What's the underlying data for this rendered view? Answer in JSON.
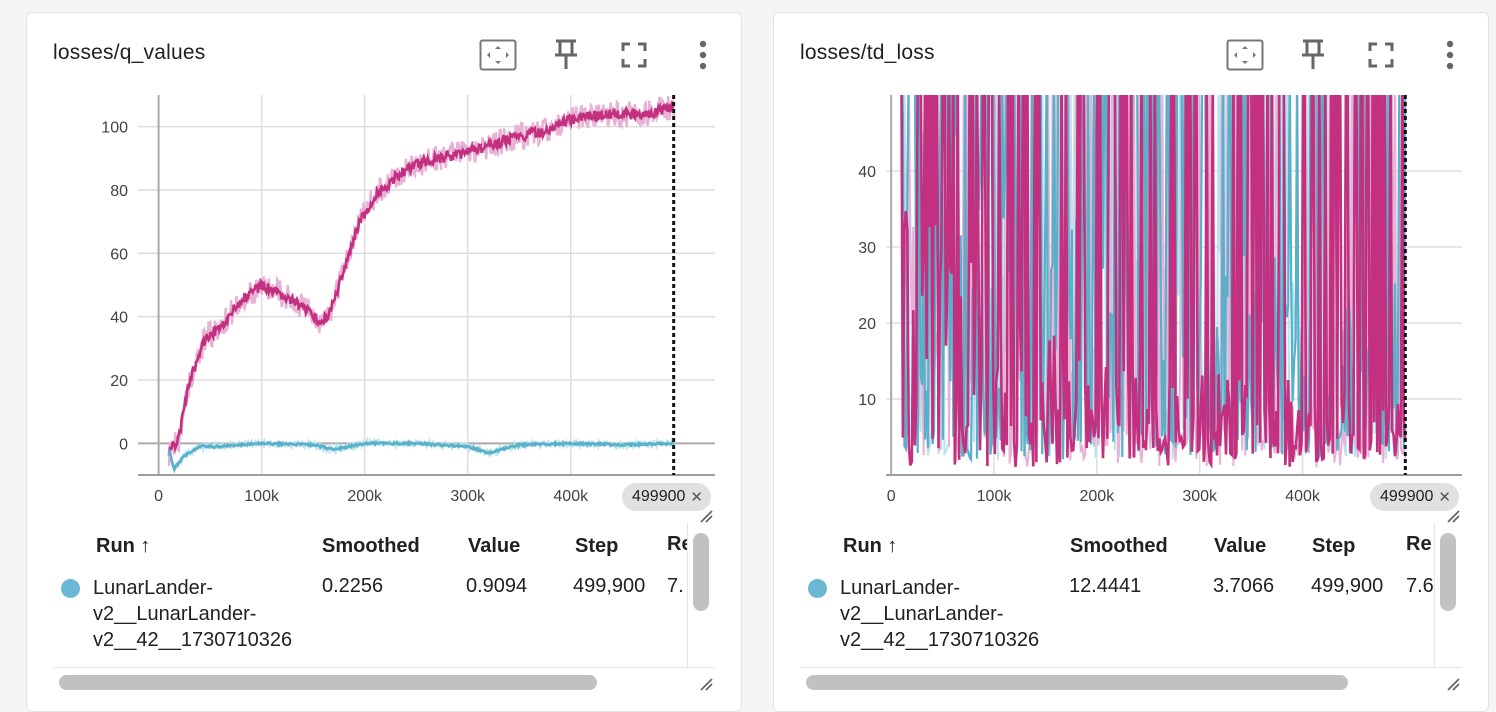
{
  "cards": [
    {
      "title": "losses/q_values",
      "toolbar": {
        "fit_icon": "fit-domain-icon",
        "pin_icon": "pin-icon",
        "fullscreen_icon": "fullscreen-icon",
        "more_icon": "more-vert-icon"
      },
      "step_chip": {
        "label": "499900",
        "close": "✕"
      },
      "table": {
        "headers": {
          "run": "Run ↑",
          "smoothed": "Smoothed",
          "value": "Value",
          "step": "Step",
          "relative": "Re"
        },
        "row": {
          "run": "LunarLander-v2__LunarLander-v2__42__1730710326",
          "run_lines": [
            "LunarLander-",
            "v2__LunarLander-",
            "v2__42__1730710326"
          ],
          "smoothed": "0.2256",
          "value": "0.9094",
          "step": "499,900",
          "relative_clipped": "7."
        }
      }
    },
    {
      "title": "losses/td_loss",
      "toolbar": {
        "fit_icon": "fit-domain-icon",
        "pin_icon": "pin-icon",
        "fullscreen_icon": "fullscreen-icon",
        "more_icon": "more-vert-icon"
      },
      "step_chip": {
        "label": "499900",
        "close": "✕"
      },
      "table": {
        "headers": {
          "run": "Run ↑",
          "smoothed": "Smoothed",
          "value": "Value",
          "step": "Step",
          "relative": "Re"
        },
        "row": {
          "run": "LunarLander-v2__LunarLander-v2__42__1730710326",
          "run_lines": [
            "LunarLander-",
            "v2__LunarLander-",
            "v2__42__1730710326"
          ],
          "smoothed": "12.4441",
          "value": "3.7066",
          "step": "499,900",
          "relative_clipped": "7.6"
        }
      }
    }
  ],
  "colors": {
    "run_dot": "#6bb8d4",
    "series_pink": "#c2307f",
    "series_pink_raw": "#e7b2d6",
    "series_blue": "#5ab0c8",
    "series_blue_raw": "#b8e4f0",
    "grid": "#dddddd"
  },
  "chart_data": [
    {
      "type": "line",
      "title": "losses/q_values",
      "xlim": [
        -20000,
        540000
      ],
      "ylim": [
        -10,
        110
      ],
      "xticks": [
        0,
        100000,
        200000,
        300000,
        400000
      ],
      "xtick_labels": [
        "0",
        "100k",
        "200k",
        "300k",
        "400k"
      ],
      "yticks": [
        0,
        20,
        40,
        60,
        80,
        100
      ],
      "ytick_labels": [
        "0",
        "20",
        "40",
        "60",
        "80",
        "100"
      ],
      "cursor_step": 499900,
      "grid": true,
      "series": [
        {
          "color_key": "series_pink",
          "x": [
            10000,
            20000,
            30000,
            45000,
            60000,
            80000,
            100000,
            120000,
            140000,
            155000,
            165000,
            180000,
            195000,
            210000,
            230000,
            250000,
            270000,
            290000,
            310000,
            330000,
            350000,
            370000,
            390000,
            410000,
            440000,
            470000,
            499900
          ],
          "y": [
            -3,
            2,
            20,
            33,
            37,
            45,
            50,
            47,
            43,
            38,
            40,
            55,
            70,
            78,
            84,
            88,
            90,
            91,
            93,
            95,
            97,
            98,
            101,
            103,
            104,
            104,
            106
          ]
        },
        {
          "color_key": "series_blue",
          "x": [
            10000,
            15000,
            25000,
            40000,
            60000,
            100000,
            150000,
            170000,
            200000,
            250000,
            300000,
            320000,
            350000,
            400000,
            450000,
            499900
          ],
          "y": [
            -2,
            -8,
            -4,
            -1,
            -1,
            0,
            -0.5,
            -2,
            0,
            0,
            -1,
            -3,
            -0.5,
            0,
            -0.5,
            0
          ]
        }
      ]
    },
    {
      "type": "line",
      "title": "losses/td_loss",
      "xlim": [
        -5000,
        555000
      ],
      "ylim": [
        0,
        50
      ],
      "xticks": [
        0,
        100000,
        200000,
        300000,
        400000
      ],
      "xtick_labels": [
        "0",
        "100k",
        "200k",
        "300k",
        "400k"
      ],
      "yticks": [
        10,
        20,
        30,
        40
      ],
      "ytick_labels": [
        "10",
        "20",
        "30",
        "40"
      ],
      "cursor_step": 499900,
      "grid": true,
      "series": [
        {
          "color_key": "series_blue",
          "x": [
            10000,
            499900
          ],
          "y_range": [
            2,
            50
          ],
          "pattern": "dense-noisy",
          "level_y": [
            30,
            20,
            15
          ]
        },
        {
          "color_key": "series_pink",
          "x": [
            10000,
            499900
          ],
          "y_range": [
            1,
            50
          ],
          "pattern": "dense-noisy",
          "level_y": [
            22,
            10,
            6
          ]
        }
      ]
    }
  ]
}
